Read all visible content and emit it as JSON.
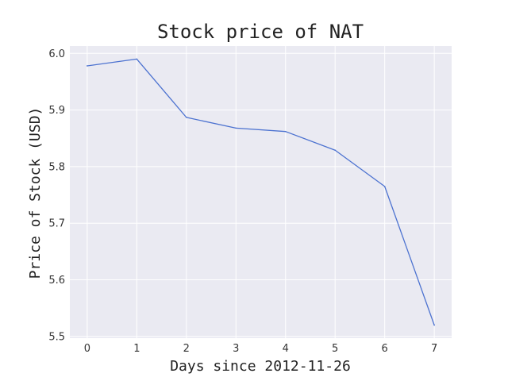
{
  "chart_data": {
    "type": "line",
    "title": "Stock price of NAT",
    "xlabel": "Days since 2012-11-26",
    "ylabel": "Price of Stock (USD)",
    "x": [
      0,
      1,
      2,
      3,
      4,
      5,
      6,
      7
    ],
    "series": [
      {
        "values": [
          5.978,
          5.99,
          5.887,
          5.868,
          5.862,
          5.829,
          5.765,
          5.52
        ]
      }
    ],
    "xlim": [
      -0.35,
      7.35
    ],
    "ylim": [
      5.497,
      6.013
    ],
    "xticks": [
      0,
      1,
      2,
      3,
      4,
      5,
      6,
      7
    ],
    "yticks": [
      5.5,
      5.6,
      5.7,
      5.8,
      5.9,
      6.0
    ],
    "ytick_labels": [
      "5.5",
      "5.6",
      "5.7",
      "5.8",
      "5.9",
      "6.0"
    ],
    "grid": true,
    "colors": {
      "background": "#eaeaf2",
      "line": "#4c72d0",
      "grid": "#ffffff"
    }
  }
}
